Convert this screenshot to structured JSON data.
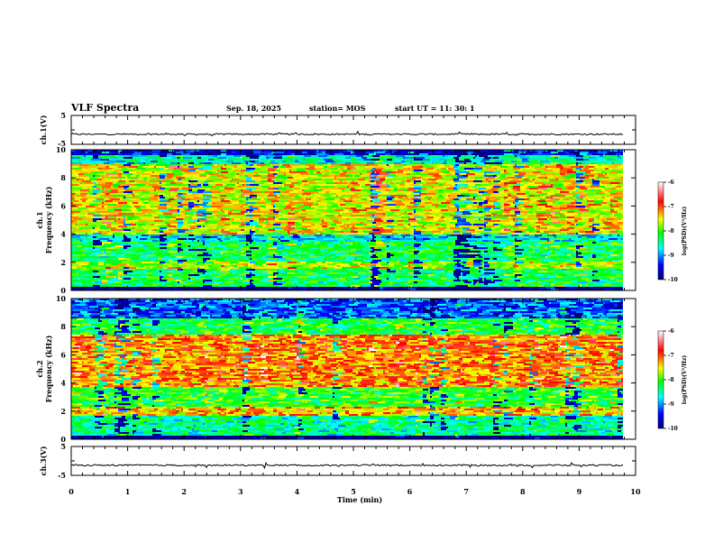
{
  "header": {
    "title": "VLF Spectra",
    "date": "Sep. 18, 2025",
    "station": "station= MOS",
    "start": "start  UT  =    11: 30: 1"
  },
  "chart_data": [
    {
      "type": "line",
      "name": "ch1-waveform",
      "ylabel": "ch.1(V)",
      "ylim": [
        -5,
        5
      ],
      "yticks": [
        "5",
        "-5"
      ],
      "baseline": -1.5,
      "x_range": [
        0,
        9.8
      ]
    },
    {
      "type": "heatmap",
      "name": "ch1-spectrogram",
      "ylabel_line1": "ch.1",
      "ylabel_line2": "Frequency  (kHz)",
      "ylim": [
        0,
        10
      ],
      "yticks": [
        "0",
        "2",
        "4",
        "6",
        "8",
        "10"
      ],
      "x_range": [
        0,
        9.8
      ],
      "bands": [
        {
          "from": 0,
          "to": 0.3,
          "level": -10
        },
        {
          "from": 0.3,
          "to": 1.5,
          "level": -8.2
        },
        {
          "from": 1.5,
          "to": 2.0,
          "level": -7.6
        },
        {
          "from": 2.0,
          "to": 3.5,
          "level": -8.2
        },
        {
          "from": 3.5,
          "to": 4.0,
          "level": -8.7
        },
        {
          "from": 4.0,
          "to": 9.0,
          "level": -7.4
        },
        {
          "from": 9.0,
          "to": 9.6,
          "level": -8.6
        },
        {
          "from": 9.6,
          "to": 10,
          "level": -9.5
        }
      ],
      "colorbar": {
        "label": "log(PSD)(V²/Hz)",
        "range": [
          -10,
          -6
        ],
        "ticks": [
          "-6",
          "-7",
          "-8",
          "-9",
          "-10"
        ]
      }
    },
    {
      "type": "heatmap",
      "name": "ch2-spectrogram",
      "ylabel_line1": "ch.2",
      "ylabel_line2": "Frequency  (kHz)",
      "ylim": [
        0,
        10
      ],
      "yticks": [
        "0",
        "2",
        "4",
        "6",
        "8",
        "10"
      ],
      "x_range": [
        0,
        9.8
      ],
      "bands": [
        {
          "from": 0,
          "to": 0.2,
          "level": -10
        },
        {
          "from": 0.2,
          "to": 1.7,
          "level": -8.4
        },
        {
          "from": 1.7,
          "to": 2.3,
          "level": -7.2
        },
        {
          "from": 2.3,
          "to": 3.7,
          "level": -8.0
        },
        {
          "from": 3.7,
          "to": 7.5,
          "level": -7.0
        },
        {
          "from": 7.5,
          "to": 8.6,
          "level": -8.1
        },
        {
          "from": 8.6,
          "to": 10,
          "level": -9.1
        }
      ],
      "colorbar": {
        "label": "log(PSD)(V²/Hz)",
        "range": [
          -10,
          -6
        ],
        "ticks": [
          "-6",
          "-7",
          "-8",
          "-9",
          "-10"
        ]
      }
    },
    {
      "type": "line",
      "name": "ch3-waveform",
      "ylabel": "ch.3(V)",
      "ylim": [
        -5,
        5
      ],
      "yticks": [
        "5",
        "-5"
      ],
      "baseline": -1.5,
      "x_range": [
        0,
        9.8
      ]
    }
  ],
  "xaxis": {
    "label": "Time  (min)",
    "range": [
      0,
      10
    ],
    "ticks": [
      "0",
      "1",
      "2",
      "3",
      "4",
      "5",
      "6",
      "7",
      "8",
      "9",
      "10"
    ]
  },
  "colors": {
    "colormap": [
      "#000080",
      "#0000ff",
      "#00ffff",
      "#00ff00",
      "#ffff00",
      "#ff0000",
      "#ffffff"
    ],
    "axis": "#000000"
  }
}
